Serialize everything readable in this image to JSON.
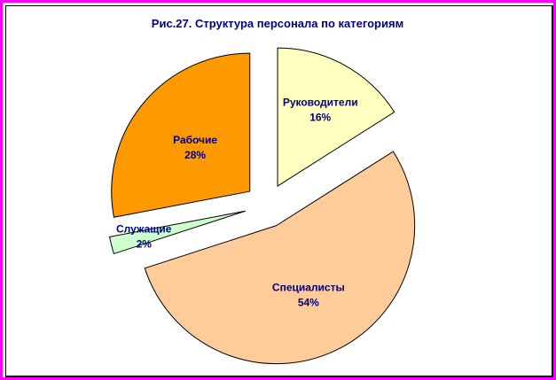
{
  "chart_data": {
    "type": "pie",
    "title": "Рис.27.  Структура персонала по категориям",
    "slices": [
      {
        "label": "Руководители",
        "value": 16,
        "value_label": "16%",
        "color": "#ffffc0"
      },
      {
        "label": "Специалисты",
        "value": 54,
        "value_label": "54%",
        "color": "#ffcc99"
      },
      {
        "label": "Служащие",
        "value": 2,
        "value_label": "2%",
        "color": "#ccffcc"
      },
      {
        "label": "Рабочие",
        "value": 28,
        "value_label": "28%",
        "color": "#ff9900"
      }
    ],
    "exploded": true,
    "legend": "none"
  },
  "colors": {
    "frame": "#ff00ff",
    "label_text": "#000080"
  }
}
